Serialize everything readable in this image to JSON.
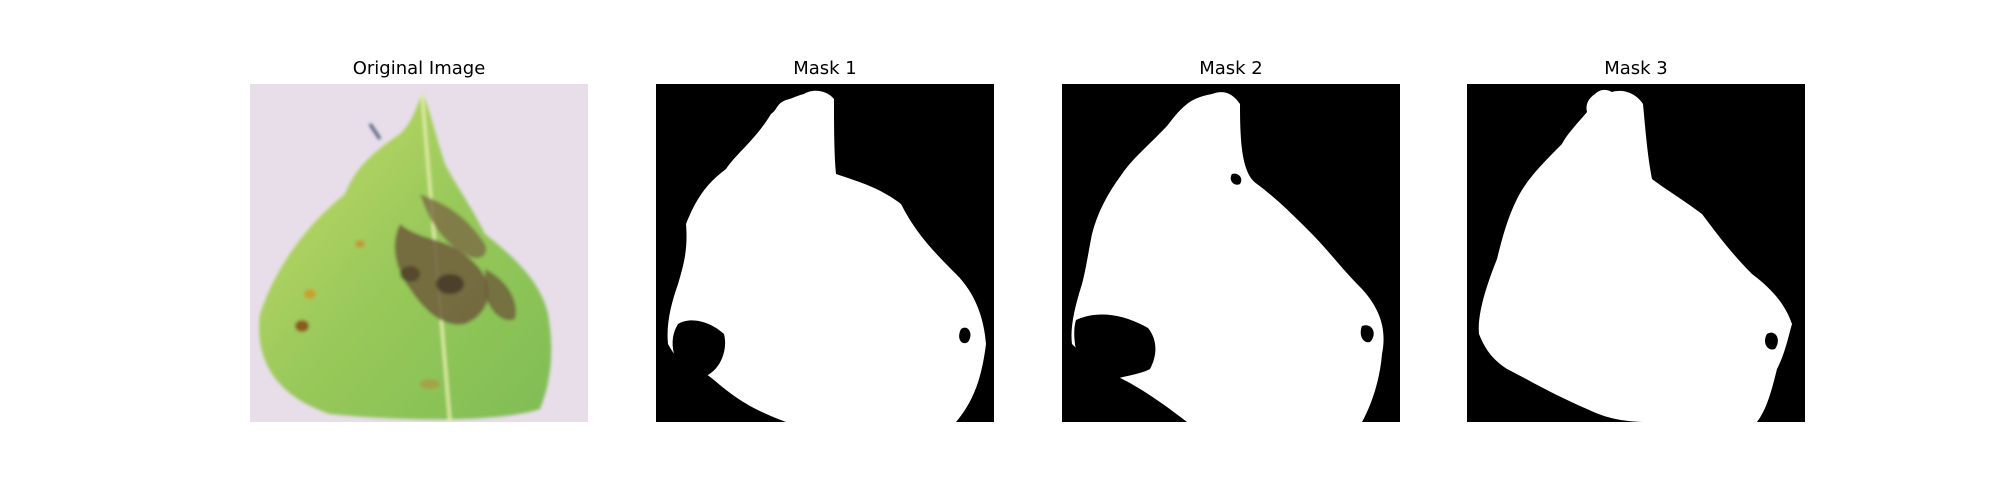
{
  "panels": [
    {
      "title": "Original Image"
    },
    {
      "title": "Mask 1"
    },
    {
      "title": "Mask 2"
    },
    {
      "title": "Mask 3"
    }
  ],
  "colors": {
    "background": "#ffffff",
    "mask_background": "#000000",
    "mask_foreground": "#ffffff",
    "photo_backdrop": "#e6dde9",
    "leaf_green": "#9ccc59",
    "lesion_brown": "#6d5a3a"
  }
}
